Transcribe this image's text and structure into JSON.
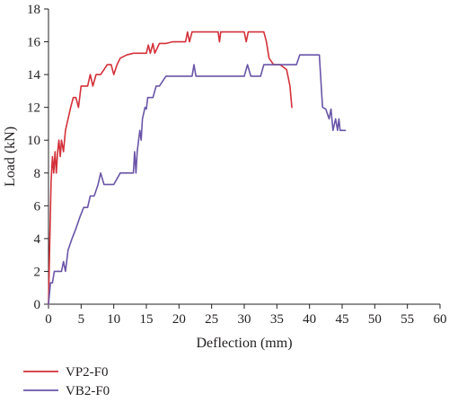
{
  "chart_data": {
    "type": "line",
    "title": "",
    "xlabel": "Deflection (mm)",
    "ylabel": "Load (kN)",
    "xlim": [
      0,
      60
    ],
    "ylim": [
      0,
      18
    ],
    "x_ticks": [
      "0",
      "5",
      "10",
      "15",
      "20",
      "25",
      "30",
      "35",
      "40",
      "45",
      "50",
      "55",
      "60"
    ],
    "y_ticks": [
      "0",
      "2",
      "4",
      "6",
      "8",
      "10",
      "12",
      "14",
      "16",
      "18"
    ],
    "grid": false,
    "legend_position": "bottom-left",
    "series": [
      {
        "name": "VP2-F0",
        "color": "#d3313a",
        "points": [
          [
            0,
            0
          ],
          [
            0.2,
            4
          ],
          [
            0.4,
            7.5
          ],
          [
            0.6,
            9
          ],
          [
            0.8,
            8
          ],
          [
            1.0,
            9.3
          ],
          [
            1.2,
            8
          ],
          [
            1.4,
            9.3
          ],
          [
            1.6,
            10
          ],
          [
            1.8,
            9
          ],
          [
            2.0,
            10
          ],
          [
            2.3,
            9.3
          ],
          [
            2.6,
            10.6
          ],
          [
            3.0,
            11.3
          ],
          [
            3.4,
            12
          ],
          [
            3.8,
            12.6
          ],
          [
            4.2,
            12.6
          ],
          [
            4.6,
            12
          ],
          [
            5.0,
            13.3
          ],
          [
            5.5,
            13.3
          ],
          [
            6.0,
            13.3
          ],
          [
            6.4,
            14
          ],
          [
            6.8,
            13.3
          ],
          [
            7.3,
            14
          ],
          [
            8.0,
            14
          ],
          [
            8.5,
            14.3
          ],
          [
            9.0,
            14.6
          ],
          [
            9.6,
            14.6
          ],
          [
            10.0,
            14
          ],
          [
            10.5,
            14.6
          ],
          [
            11.0,
            15
          ],
          [
            12.0,
            15.2
          ],
          [
            13.0,
            15.3
          ],
          [
            14.0,
            15.3
          ],
          [
            15.0,
            15.3
          ],
          [
            15.3,
            15.8
          ],
          [
            15.6,
            15.3
          ],
          [
            16.0,
            15.9
          ],
          [
            16.3,
            15.3
          ],
          [
            17.0,
            15.9
          ],
          [
            18.0,
            15.9
          ],
          [
            19.0,
            16
          ],
          [
            20.0,
            16
          ],
          [
            21.0,
            16
          ],
          [
            21.3,
            16.6
          ],
          [
            21.6,
            16
          ],
          [
            22.0,
            16.6
          ],
          [
            24.0,
            16.6
          ],
          [
            26.0,
            16.6
          ],
          [
            26.2,
            16
          ],
          [
            26.4,
            16.6
          ],
          [
            28.0,
            16.6
          ],
          [
            30.0,
            16.6
          ],
          [
            30.3,
            16
          ],
          [
            30.6,
            16.6
          ],
          [
            32.0,
            16.6
          ],
          [
            33.0,
            16.6
          ],
          [
            33.4,
            16
          ],
          [
            33.8,
            15
          ],
          [
            34.5,
            14.6
          ],
          [
            35.5,
            14.6
          ],
          [
            36.5,
            14.3
          ],
          [
            37.0,
            13.3
          ],
          [
            37.3,
            12
          ]
        ]
      },
      {
        "name": "VB2-F0",
        "color": "#6a55a8",
        "points": [
          [
            0,
            0
          ],
          [
            0.3,
            1.3
          ],
          [
            0.6,
            1.3
          ],
          [
            0.9,
            2
          ],
          [
            2.0,
            2
          ],
          [
            2.3,
            2.6
          ],
          [
            2.6,
            2
          ],
          [
            3.0,
            3.3
          ],
          [
            3.6,
            4
          ],
          [
            4.2,
            4.6
          ],
          [
            4.8,
            5.3
          ],
          [
            5.4,
            5.9
          ],
          [
            6.0,
            5.9
          ],
          [
            6.4,
            6.6
          ],
          [
            7.0,
            6.6
          ],
          [
            7.6,
            7.3
          ],
          [
            8.0,
            8
          ],
          [
            8.5,
            7.3
          ],
          [
            10.0,
            7.3
          ],
          [
            11.0,
            8
          ],
          [
            13.0,
            8
          ],
          [
            13.2,
            9.3
          ],
          [
            13.4,
            8
          ],
          [
            13.6,
            9.3
          ],
          [
            14.0,
            10.6
          ],
          [
            14.2,
            10
          ],
          [
            14.4,
            11.3
          ],
          [
            14.8,
            12
          ],
          [
            15.0,
            11.9
          ],
          [
            15.2,
            12.6
          ],
          [
            16.0,
            12.6
          ],
          [
            16.5,
            13.3
          ],
          [
            17.0,
            13.3
          ],
          [
            18.0,
            13.9
          ],
          [
            20.0,
            13.9
          ],
          [
            22.0,
            13.9
          ],
          [
            22.3,
            14.6
          ],
          [
            22.6,
            13.9
          ],
          [
            25.0,
            13.9
          ],
          [
            28.0,
            13.9
          ],
          [
            30.0,
            13.9
          ],
          [
            30.5,
            14.6
          ],
          [
            31.0,
            13.9
          ],
          [
            32.5,
            13.9
          ],
          [
            33.0,
            14.6
          ],
          [
            34.0,
            14.6
          ],
          [
            35.0,
            14.6
          ],
          [
            36.5,
            14.6
          ],
          [
            38.0,
            14.6
          ],
          [
            38.5,
            15.2
          ],
          [
            40.0,
            15.2
          ],
          [
            41.5,
            15.2
          ],
          [
            42.0,
            12
          ],
          [
            42.5,
            11.9
          ],
          [
            43.0,
            11.3
          ],
          [
            43.3,
            11.9
          ],
          [
            43.6,
            10.6
          ],
          [
            44.0,
            11.3
          ],
          [
            44.3,
            10.6
          ],
          [
            44.5,
            11.3
          ],
          [
            44.7,
            10.6
          ],
          [
            45.5,
            10.6
          ]
        ]
      }
    ]
  }
}
